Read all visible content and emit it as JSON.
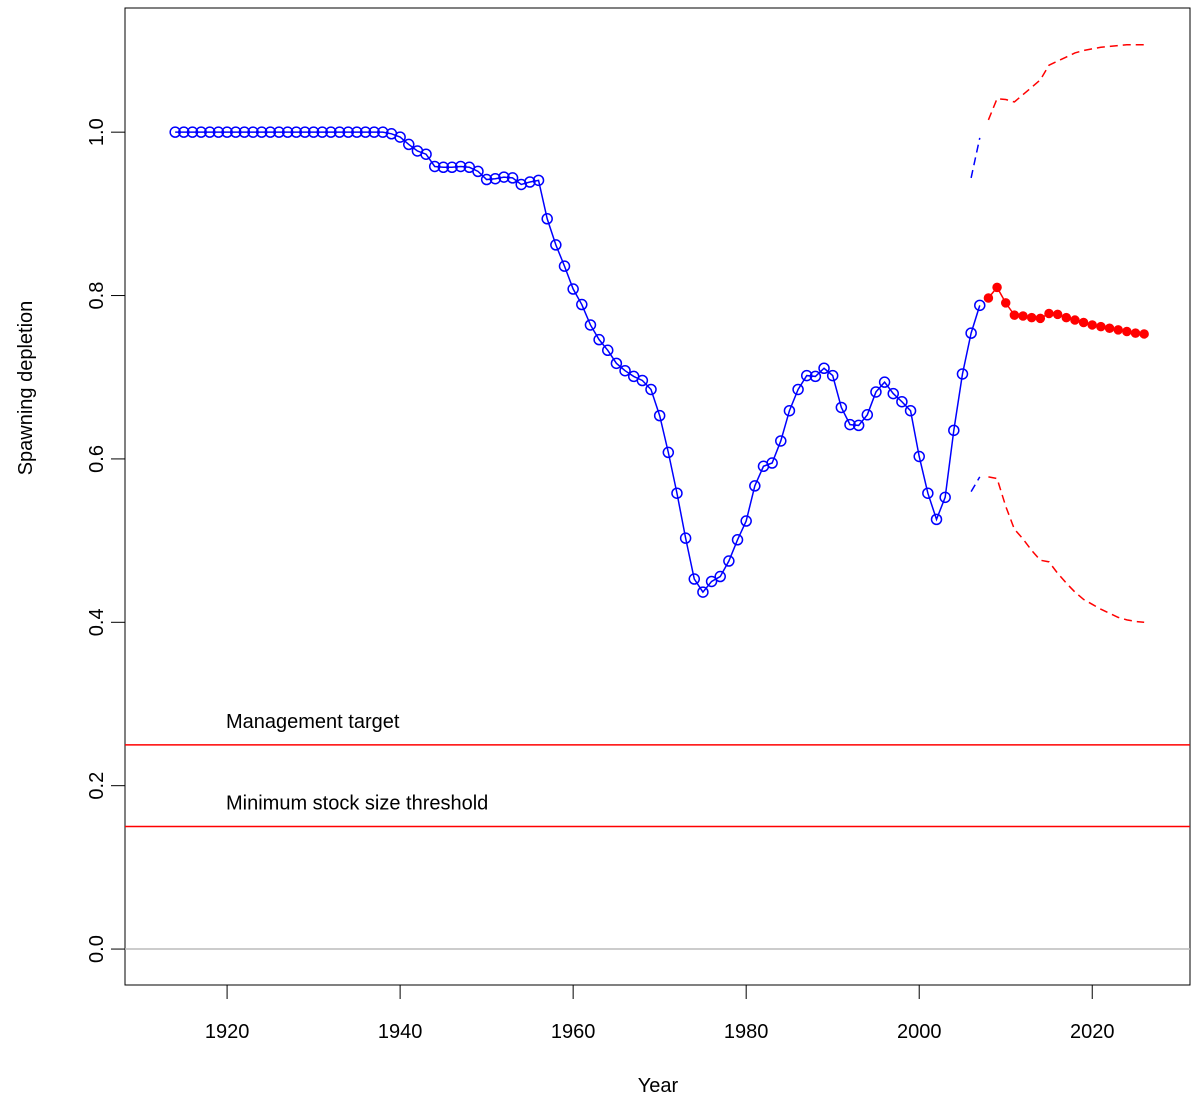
{
  "chart_data": {
    "type": "line",
    "xlabel": "Year",
    "ylabel": "Spawning depletion",
    "xlim": [
      1908.2,
      2031.3
    ],
    "ylim": [
      -0.044,
      1.152
    ],
    "xticks": [
      1920,
      1940,
      1960,
      1980,
      2000,
      2020
    ],
    "yticks": [
      {
        "value": 0,
        "label": "0.0"
      },
      0.2,
      0.4,
      0.6,
      0.8,
      {
        "value": 1,
        "label": "1.0"
      }
    ],
    "hlines": [
      {
        "value": 0,
        "color": "#bbbbbb"
      },
      {
        "value": 0.25,
        "color": "#ff0000",
        "label": "Management target"
      },
      {
        "value": 0.15,
        "color": "#ff0000",
        "label": "Minimum stock size threshold"
      }
    ],
    "series": [
      {
        "color": "#0000ff",
        "line": "solid",
        "marker": "open",
        "x": [
          1914,
          1915,
          1916,
          1917,
          1918,
          1919,
          1920,
          1921,
          1922,
          1923,
          1924,
          1925,
          1926,
          1927,
          1928,
          1929,
          1930,
          1931,
          1932,
          1933,
          1934,
          1935,
          1936,
          1937,
          1938,
          1939,
          1940,
          1941,
          1942,
          1943,
          1944,
          1945,
          1946,
          1947,
          1948,
          1949,
          1950,
          1951,
          1952,
          1953,
          1954,
          1955,
          1956,
          1957,
          1958,
          1959,
          1960,
          1961,
          1962,
          1963,
          1964,
          1965,
          1966,
          1967,
          1968,
          1969,
          1970,
          1971,
          1972,
          1973,
          1974,
          1975,
          1976,
          1977,
          1978,
          1979,
          1980,
          1981,
          1982,
          1983,
          1984,
          1985,
          1986,
          1987,
          1988,
          1989,
          1990,
          1991,
          1992,
          1993,
          1994,
          1995,
          1996,
          1997,
          1998,
          1999,
          2000,
          2001,
          2002,
          2003,
          2004,
          2005,
          2006,
          2007
        ],
        "values": [
          1,
          1,
          1,
          1,
          1,
          1,
          1,
          1,
          1,
          1,
          1,
          1,
          1,
          1,
          1,
          1,
          1,
          1,
          1,
          1,
          1,
          1,
          1,
          1,
          1,
          0.998,
          0.994,
          0.985,
          0.977,
          0.973,
          0.958,
          0.957,
          0.957,
          0.958,
          0.957,
          0.952,
          0.942,
          0.943,
          0.945,
          0.944,
          0.936,
          0.939,
          0.941,
          0.894,
          0.862,
          0.836,
          0.808,
          0.789,
          0.764,
          0.746,
          0.733,
          0.717,
          0.708,
          0.701,
          0.696,
          0.685,
          0.653,
          0.608,
          0.558,
          0.503,
          0.453,
          0.437,
          0.45,
          0.456,
          0.475,
          0.501,
          0.524,
          0.567,
          0.591,
          0.595,
          0.622,
          0.659,
          0.685,
          0.702,
          0.701,
          0.711,
          0.702,
          0.663,
          0.642,
          0.641,
          0.654,
          0.682,
          0.694,
          0.68,
          0.67,
          0.659,
          0.603,
          0.558,
          0.526,
          0.553,
          0.635,
          0.704,
          0.754,
          0.788
        ]
      },
      {
        "color": "#ff0000",
        "line": "solid",
        "marker": "filled",
        "x": [
          2008,
          2009,
          2010,
          2011,
          2012,
          2013,
          2014,
          2015,
          2016,
          2017,
          2018,
          2019,
          2020,
          2021,
          2022,
          2023,
          2024,
          2025,
          2026
        ],
        "values": [
          0.797,
          0.81,
          0.791,
          0.776,
          0.775,
          0.773,
          0.772,
          0.778,
          0.777,
          0.773,
          0.77,
          0.767,
          0.764,
          0.762,
          0.76,
          0.758,
          0.756,
          0.754,
          0.753
        ]
      },
      {
        "color": "#0000ff",
        "line": "dashed",
        "x": [
          2006,
          2007
        ],
        "values": [
          0.944,
          0.993
        ]
      },
      {
        "color": "#0000ff",
        "line": "dashed",
        "x": [
          2006,
          2007
        ],
        "values": [
          0.56,
          0.578
        ]
      },
      {
        "color": "#ff0000",
        "line": "dashed",
        "x": [
          2008,
          2009,
          2010,
          2011,
          2012,
          2013,
          2014,
          2015,
          2016,
          2017,
          2018,
          2019,
          2020,
          2021,
          2022,
          2023,
          2024,
          2025,
          2026
        ],
        "values": [
          1.015,
          1.041,
          1.04,
          1.037,
          1.046,
          1.055,
          1.064,
          1.082,
          1.087,
          1.092,
          1.097,
          1.1,
          1.102,
          1.104,
          1.105,
          1.106,
          1.107,
          1.107,
          1.107
        ]
      },
      {
        "color": "#ff0000",
        "line": "dashed",
        "x": [
          2008,
          2009,
          2010,
          2011,
          2012,
          2013,
          2014,
          2015,
          2016,
          2017,
          2018,
          2019,
          2020,
          2021,
          2022,
          2023,
          2024,
          2025,
          2026
        ],
        "values": [
          0.578,
          0.576,
          0.542,
          0.514,
          0.502,
          0.488,
          0.476,
          0.474,
          0.46,
          0.448,
          0.437,
          0.428,
          0.422,
          0.416,
          0.411,
          0.406,
          0.403,
          0.401,
          0.4
        ]
      }
    ]
  }
}
